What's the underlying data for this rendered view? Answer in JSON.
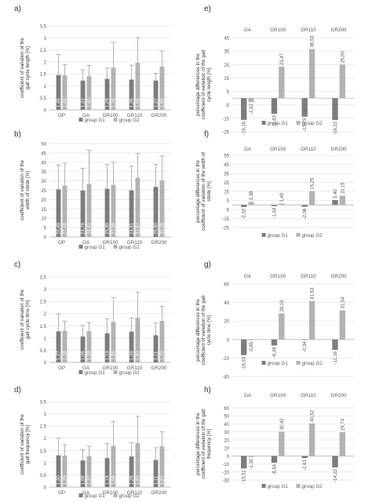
{
  "colors": {
    "g1": "#7d7d7d",
    "g2": "#b3b3b3",
    "axis": "#bdbdbd",
    "grid": "#e4e4e4",
    "text": "#555555",
    "labelText": "#ffffff"
  },
  "chart_data": [
    {
      "panel": "a)",
      "type": "bar",
      "categories": [
        "GP",
        "GA",
        "GR100",
        "GR110",
        "GR200"
      ],
      "ylabel": "coefficient of variation of the gait cycle length [%]",
      "ylim": [
        0,
        3.5
      ],
      "yticks": [
        0,
        0.5,
        1,
        1.5,
        2,
        2.5,
        3,
        3.5
      ],
      "tick_labels": [
        "0",
        "0,5",
        "1",
        "1,5",
        "2",
        "2,5",
        "3",
        "3,5"
      ],
      "series": [
        {
          "name": "group G1",
          "values": [
            1.45,
            1.22,
            1.29,
            1.26,
            1.22
          ],
          "labels": [
            "1,45",
            "1,22",
            "1,29",
            "1,26",
            "1,22"
          ],
          "errors": [
            0.85,
            0.45,
            0.45,
            0.6,
            0.3
          ]
        },
        {
          "name": "group G2",
          "values": [
            1.44,
            1.4,
            1.76,
            1.96,
            1.8
          ],
          "labels": [
            "1,44",
            "1,40",
            "1,76",
            "1,96",
            "1,80"
          ],
          "errors": [
            0.45,
            0.45,
            1.05,
            1.05,
            0.65
          ]
        }
      ],
      "legend": [
        "group G1",
        "group G2"
      ]
    },
    {
      "panel": "b)",
      "type": "bar",
      "categories": [
        "GP",
        "GA",
        "GR100",
        "GR110",
        "GR200"
      ],
      "ylabel": "coefficient of variation of the width of stride [%]",
      "ylim": [
        0,
        50
      ],
      "yticks": [
        0,
        5,
        10,
        15,
        20,
        25,
        30,
        35,
        40,
        45,
        50
      ],
      "tick_labels": [
        "0",
        "5",
        "10",
        "15",
        "20",
        "25",
        "30",
        "35",
        "40",
        "45",
        "50"
      ],
      "series": [
        {
          "name": "group G1",
          "values": [
            25.48,
            24.78,
            25.8,
            24.91,
            26.8
          ],
          "labels": [
            "25,48",
            "24,78",
            "25,80",
            "24,91",
            "26,80"
          ],
          "errors": [
            13,
            12,
            13,
            13,
            12
          ]
        },
        {
          "name": "group G2",
          "values": [
            27.48,
            28.41,
            27.89,
            31.67,
            30.28
          ],
          "labels": [
            "27,48",
            "28,41",
            "27,89",
            "31,67",
            "30,28"
          ],
          "errors": [
            12,
            18,
            12,
            13,
            13
          ]
        }
      ],
      "legend": [
        "group G1",
        "group G2"
      ]
    },
    {
      "panel": "c)",
      "type": "bar",
      "categories": [
        "GP",
        "GA",
        "GR100",
        "GR110",
        "GR200"
      ],
      "ylabel": "coefficient of variation of the gait cycle time [%]",
      "ylim": [
        0,
        3.5
      ],
      "yticks": [
        0,
        0.5,
        1,
        1.5,
        2,
        2.5,
        3,
        3.5
      ],
      "tick_labels": [
        "0",
        "0,5",
        "1",
        "1,5",
        "2",
        "2,5",
        "3",
        "3,5"
      ],
      "series": [
        {
          "name": "group G1",
          "values": [
            1.27,
            1.06,
            1.19,
            1.26,
            1.11
          ],
          "labels": [
            "1,27",
            "1,06",
            "1,19",
            "1,26",
            "1,11"
          ],
          "errors": [
            0.7,
            0.45,
            0.6,
            0.55,
            0.5
          ]
        },
        {
          "name": "group G2",
          "values": [
            1.29,
            1.28,
            1.66,
            1.83,
            1.7
          ],
          "labels": [
            "1,29",
            "1,28",
            "1,66",
            "1,83",
            "1,70"
          ],
          "errors": [
            0.4,
            0.35,
            1.0,
            1.05,
            0.6
          ]
        }
      ],
      "legend": [
        "group G1",
        "group G2"
      ]
    },
    {
      "panel": "d)",
      "type": "bar",
      "categories": [
        "GP",
        "GA",
        "GR100",
        "GR110",
        "GR200"
      ],
      "ylabel": "coefficient of variation of the gait frequency [%]",
      "ylim": [
        0,
        3.5
      ],
      "yticks": [
        0,
        0.5,
        1,
        1.5,
        2,
        2.5,
        3,
        3.5
      ],
      "tick_labels": [
        "0",
        "0,5",
        "1",
        "1,5",
        "2",
        "2,5",
        "3",
        "3,5"
      ],
      "series": [
        {
          "name": "group G1",
          "values": [
            1.3,
            1.09,
            1.19,
            1.26,
            1.11
          ],
          "labels": [
            "1,30",
            "1,09",
            "1,19",
            "1,26",
            "1,11"
          ],
          "errors": [
            0.7,
            0.45,
            0.6,
            0.55,
            0.5
          ]
        },
        {
          "name": "group G2",
          "values": [
            1.29,
            1.27,
            1.68,
            1.8,
            1.67
          ],
          "labels": [
            "1,29",
            "1,27",
            "1,68",
            "1,80",
            "1,67"
          ],
          "errors": [
            0.45,
            0.4,
            1.0,
            1.1,
            0.6
          ]
        }
      ],
      "legend": [
        "group G1",
        "group G2"
      ]
    },
    {
      "panel": "e)",
      "type": "bar",
      "categories": [
        "GA",
        "GR100",
        "GR110",
        "GR200"
      ],
      "ylabel": "percentage differences in the coefficient of variation of the gait cycle length [%]",
      "ylim": [
        -25,
        45
      ],
      "yticks": [
        -25,
        -15,
        -5,
        5,
        15,
        25,
        35,
        45
      ],
      "tick_labels": [
        "-25",
        "-15",
        "-5",
        "5",
        "15",
        "25",
        "35",
        "45"
      ],
      "series": [
        {
          "name": "group G1",
          "values": [
            -16.16,
            -11.63,
            -13.79,
            -16.22
          ],
          "labels": [
            "-16,16",
            "-11,63",
            "-13,79",
            "-16,22"
          ]
        },
        {
          "name": "group G2",
          "values": [
            -2.92,
            23.47,
            36.53,
            25.0
          ],
          "labels": [
            "-2,92",
            "23,47",
            "36,53",
            "25,00"
          ]
        }
      ],
      "legend": [
        "group G1",
        "group G2"
      ]
    },
    {
      "panel": "f)",
      "type": "bar",
      "categories": [
        "GA",
        "GR100",
        "GR110",
        "GR200"
      ],
      "ylabel": "percentage differences in the coefficient of variation of the width of stride [%]",
      "ylim": [
        -25,
        55
      ],
      "yticks": [
        -25,
        -15,
        -5,
        5,
        15,
        25,
        35,
        45,
        55
      ],
      "tick_labels": [
        "-25",
        "-15",
        "-5",
        "5",
        "15",
        "25",
        "35",
        "45",
        "55"
      ],
      "series": [
        {
          "name": "group G1",
          "values": [
            -2.32,
            -1.34,
            -2.06,
            5.4
          ],
          "labels": [
            "-2,32",
            "-1,34",
            "-2,06",
            "5,40"
          ]
        },
        {
          "name": "group G2",
          "values": [
            3.38,
            1.49,
            15.25,
            10.19
          ],
          "labels": [
            "3,38",
            "1,49",
            "15,25",
            "10,19"
          ]
        }
      ],
      "legend": [
        "group G1",
        "group G2"
      ]
    },
    {
      "panel": "g)",
      "type": "bar",
      "categories": [
        "GA",
        "GR100",
        "GR110",
        "GR200"
      ],
      "ylabel": "percentage differences in the coefficient of variation of the gait cycle time [%]",
      "ylim": [
        -40,
        60
      ],
      "yticks": [
        -40,
        -20,
        0,
        20,
        40,
        60
      ],
      "tick_labels": [
        "-40",
        "-20",
        "0",
        "20",
        "40",
        "60"
      ],
      "series": [
        {
          "name": "group G1",
          "values": [
            -16.93,
            -6.48,
            -0.34,
            -11.16
          ],
          "labels": [
            "-16,93",
            "-6,48",
            "-0,34",
            "-11,16"
          ]
        },
        {
          "name": "group G2",
          "values": [
            -0.85,
            28.19,
            41.63,
            31.54
          ],
          "labels": [
            "-0,85",
            "28,19",
            "41,63",
            "31,54"
          ]
        }
      ],
      "legend": [
        "group G1",
        "group G2"
      ]
    },
    {
      "panel": "h)",
      "type": "bar",
      "categories": [
        "GA",
        "GR100",
        "GR110",
        "GR200"
      ],
      "ylabel": "percentage differences in the coefficient of variation of the gait frequency [%]",
      "ylim": [
        -30,
        60
      ],
      "yticks": [
        -30,
        -20,
        -10,
        0,
        10,
        20,
        30,
        40,
        50,
        60
      ],
      "tick_labels": [
        "-30",
        "-20",
        "-10",
        "0",
        "10",
        "20",
        "30",
        "40",
        "50",
        "60"
      ],
      "series": [
        {
          "name": "group G1",
          "values": [
            -15.51,
            -8.44,
            -2.63,
            -14.22
          ],
          "labels": [
            "-15,51",
            "-8,44",
            "-2,63",
            "-14,22"
          ]
        },
        {
          "name": "group G2",
          "values": [
            -1.3,
            30.42,
            40.52,
            29.74
          ],
          "labels": [
            "-1,30",
            "30,42",
            "40,52",
            "29,74"
          ]
        }
      ],
      "legend": [
        "group G1",
        "group G2"
      ]
    }
  ]
}
